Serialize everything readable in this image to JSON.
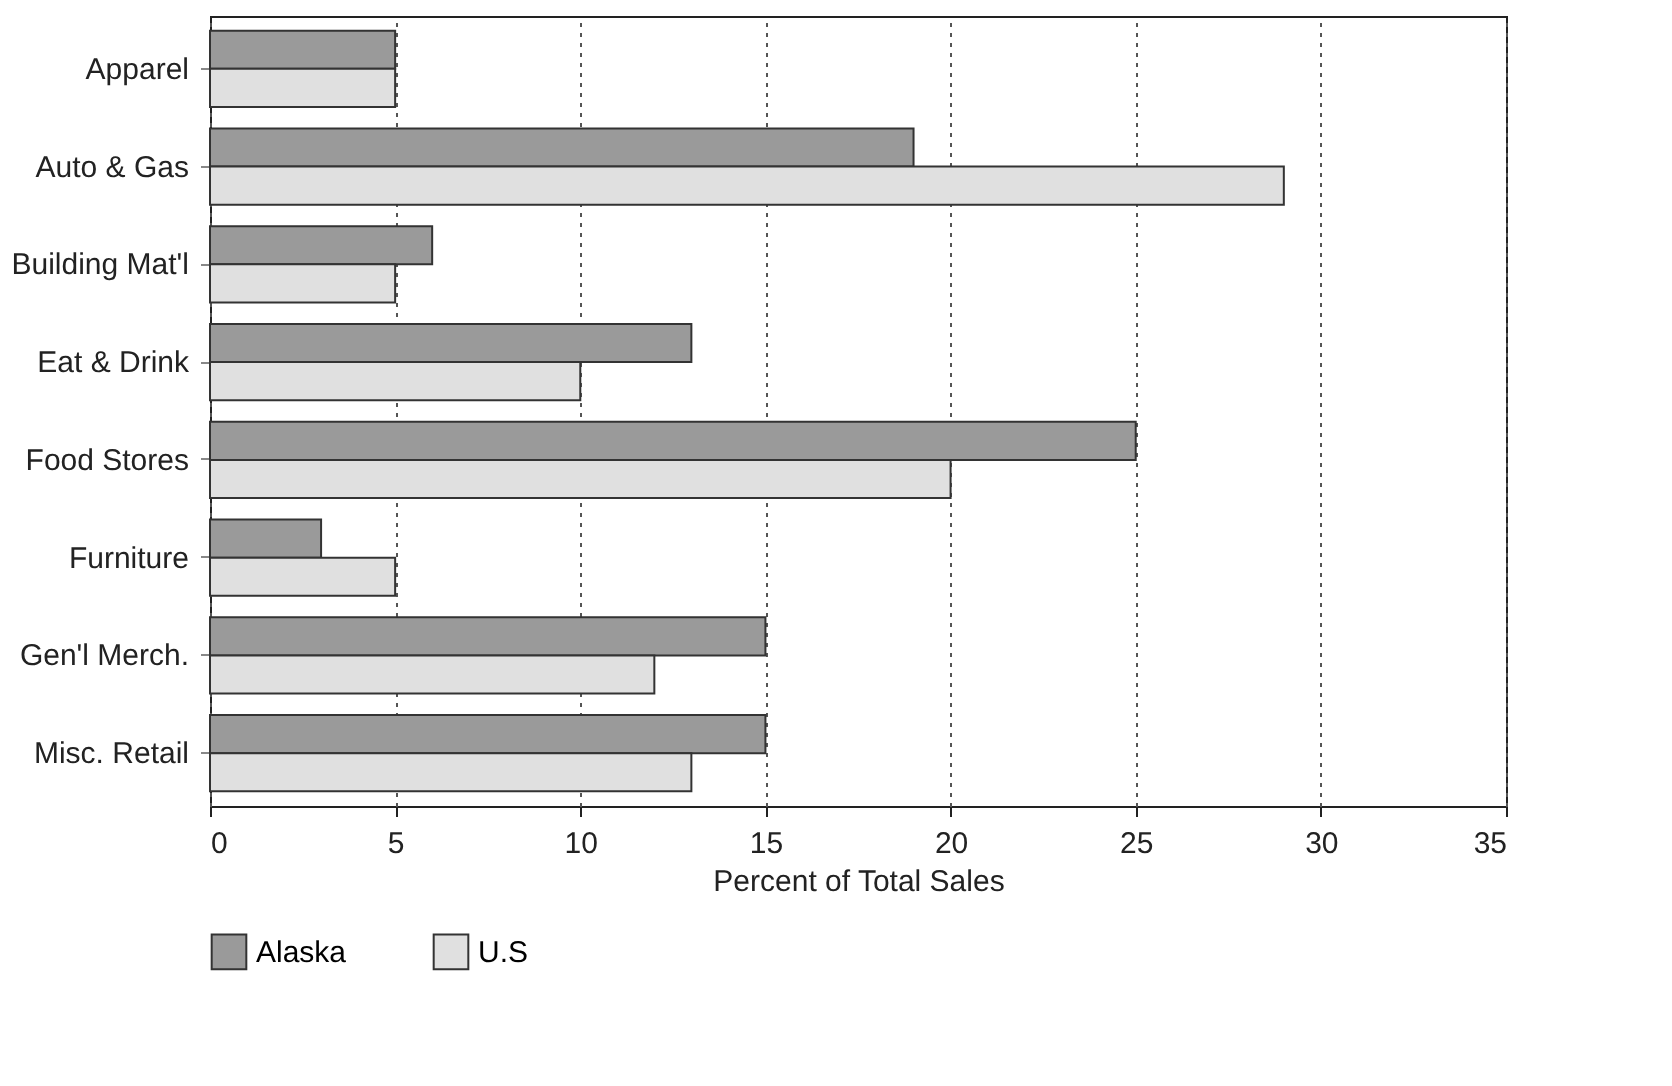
{
  "chart_data": {
    "type": "bar",
    "orientation": "horizontal",
    "xlabel": "Percent of Total Sales",
    "categories": [
      "Apparel",
      "Auto & Gas",
      "Building Mat'l",
      "Eat & Drink",
      "Food Stores",
      "Furniture",
      "Gen'l Merch.",
      "Misc. Retail"
    ],
    "series": [
      {
        "name": "Alaska",
        "color": "#9a9a9a",
        "values": [
          5,
          19,
          6,
          13,
          25,
          3,
          15,
          15
        ]
      },
      {
        "name": "U.S",
        "color": "#e0e0e0",
        "values": [
          5,
          29,
          5,
          10,
          20,
          5,
          12,
          13
        ]
      }
    ],
    "xlim": [
      0,
      35
    ],
    "xticks": [
      0,
      5,
      10,
      15,
      20,
      25,
      30,
      35
    ],
    "grid": "x",
    "legend": "bottom"
  }
}
